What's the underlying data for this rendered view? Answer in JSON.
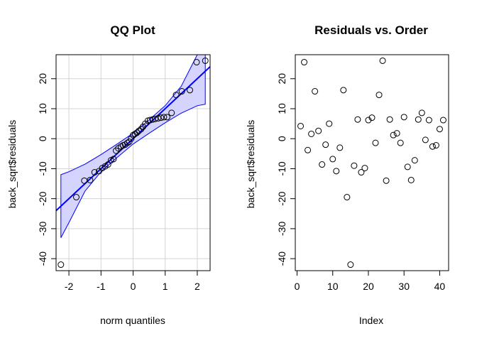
{
  "chart_data": [
    {
      "type": "scatter",
      "title": "QQ Plot",
      "xlabel": "norm quantiles",
      "ylabel": "back_sqrt$residuals",
      "xlim": [
        -2.4,
        2.4
      ],
      "ylim": [
        -44,
        28
      ],
      "xticks": [
        -2,
        -1,
        0,
        1,
        2
      ],
      "yticks": [
        -40,
        -30,
        -20,
        -10,
        0,
        10,
        20
      ],
      "grid": true,
      "point_color": "#000000",
      "line_color": "#0000ff",
      "band_fill": "#d4d4ff",
      "points": [
        {
          "x": -2.25,
          "y": -42
        },
        {
          "x": -1.77,
          "y": -19.5
        },
        {
          "x": -1.52,
          "y": -14
        },
        {
          "x": -1.34,
          "y": -13.8
        },
        {
          "x": -1.2,
          "y": -11.2
        },
        {
          "x": -1.06,
          "y": -10.8
        },
        {
          "x": -0.96,
          "y": -9.8
        },
        {
          "x": -0.87,
          "y": -9.2
        },
        {
          "x": -0.78,
          "y": -8.6
        },
        {
          "x": -0.69,
          "y": -7.2
        },
        {
          "x": -0.61,
          "y": -6.8
        },
        {
          "x": -0.53,
          "y": -4
        },
        {
          "x": -0.46,
          "y": -3.2
        },
        {
          "x": -0.38,
          "y": -2.6
        },
        {
          "x": -0.31,
          "y": -2.2
        },
        {
          "x": -0.25,
          "y": -2
        },
        {
          "x": -0.18,
          "y": -1.4
        },
        {
          "x": -0.12,
          "y": -1
        },
        {
          "x": -0.06,
          "y": 0
        },
        {
          "x": 0,
          "y": 1.2
        },
        {
          "x": 0.06,
          "y": 1.6
        },
        {
          "x": 0.12,
          "y": 2
        },
        {
          "x": 0.18,
          "y": 2.6
        },
        {
          "x": 0.25,
          "y": 3.2
        },
        {
          "x": 0.31,
          "y": 4
        },
        {
          "x": 0.38,
          "y": 5
        },
        {
          "x": 0.46,
          "y": 6
        },
        {
          "x": 0.53,
          "y": 6.2
        },
        {
          "x": 0.61,
          "y": 6.4
        },
        {
          "x": 0.69,
          "y": 6.6
        },
        {
          "x": 0.78,
          "y": 6.8
        },
        {
          "x": 0.87,
          "y": 7
        },
        {
          "x": 0.96,
          "y": 7.2
        },
        {
          "x": 1.06,
          "y": 7.2
        },
        {
          "x": 1.2,
          "y": 8.6
        },
        {
          "x": 1.34,
          "y": 14.6
        },
        {
          "x": 1.52,
          "y": 15.8
        },
        {
          "x": 1.77,
          "y": 16.2
        },
        {
          "x": 1.98,
          "y": 25.5
        },
        {
          "x": 2.25,
          "y": 26
        }
      ],
      "reference_line": {
        "intercept": 0,
        "slope": 10
      },
      "confidence_band": {
        "upper": [
          {
            "x": -2.25,
            "y": -12
          },
          {
            "x": -2,
            "y": -11
          },
          {
            "x": -1.5,
            "y": -8.5
          },
          {
            "x": -1,
            "y": -5.3
          },
          {
            "x": -0.5,
            "y": -1.8
          },
          {
            "x": 0,
            "y": 1.8
          },
          {
            "x": 0.5,
            "y": 6.3
          },
          {
            "x": 1,
            "y": 11
          },
          {
            "x": 1.5,
            "y": 17.5
          },
          {
            "x": 2,
            "y": 28
          },
          {
            "x": 2.25,
            "y": 33
          }
        ],
        "lower": [
          {
            "x": -2.25,
            "y": -33
          },
          {
            "x": -2,
            "y": -28
          },
          {
            "x": -1.5,
            "y": -17.5
          },
          {
            "x": -1,
            "y": -11
          },
          {
            "x": -0.5,
            "y": -6.3
          },
          {
            "x": 0,
            "y": -1.8
          },
          {
            "x": 0.5,
            "y": 1.8
          },
          {
            "x": 1,
            "y": 5.3
          },
          {
            "x": 1.5,
            "y": 8.5
          },
          {
            "x": 2,
            "y": 11
          },
          {
            "x": 2.25,
            "y": 11.5
          }
        ]
      }
    },
    {
      "type": "scatter",
      "title": "Residuals vs. Order",
      "xlabel": "Index",
      "ylabel": "back_sqrt$residuals",
      "xlim": [
        -0.5,
        42.5
      ],
      "ylim": [
        -44,
        28
      ],
      "xticks": [
        0,
        10,
        20,
        30,
        40
      ],
      "yticks": [
        -40,
        -30,
        -20,
        -10,
        0,
        10,
        20
      ],
      "grid": false,
      "point_color": "#000000",
      "points": [
        {
          "x": 1,
          "y": 4.2
        },
        {
          "x": 2,
          "y": 25.5
        },
        {
          "x": 3,
          "y": -3.8
        },
        {
          "x": 4,
          "y": 1.6
        },
        {
          "x": 5,
          "y": 15.8
        },
        {
          "x": 6,
          "y": 2.6
        },
        {
          "x": 7,
          "y": -8.6
        },
        {
          "x": 8,
          "y": -2
        },
        {
          "x": 9,
          "y": 5
        },
        {
          "x": 10,
          "y": -6.8
        },
        {
          "x": 11,
          "y": -10.8
        },
        {
          "x": 12,
          "y": -3
        },
        {
          "x": 13,
          "y": 16.2
        },
        {
          "x": 14,
          "y": -19.5
        },
        {
          "x": 15,
          "y": -42
        },
        {
          "x": 16,
          "y": -9
        },
        {
          "x": 17,
          "y": 6.4
        },
        {
          "x": 18,
          "y": -11.2
        },
        {
          "x": 19,
          "y": -9.8
        },
        {
          "x": 20,
          "y": 6.2
        },
        {
          "x": 21,
          "y": 7
        },
        {
          "x": 22,
          "y": -1.4
        },
        {
          "x": 23,
          "y": 14.6
        },
        {
          "x": 24,
          "y": 26
        },
        {
          "x": 25,
          "y": -14
        },
        {
          "x": 26,
          "y": 6.4
        },
        {
          "x": 27,
          "y": 1.2
        },
        {
          "x": 28,
          "y": 1.8
        },
        {
          "x": 29,
          "y": -1.4
        },
        {
          "x": 30,
          "y": 7.2
        },
        {
          "x": 31,
          "y": -9.4
        },
        {
          "x": 32,
          "y": -13.8
        },
        {
          "x": 33,
          "y": -7.2
        },
        {
          "x": 34,
          "y": 6.4
        },
        {
          "x": 35,
          "y": 8.6
        },
        {
          "x": 36,
          "y": -0.4
        },
        {
          "x": 37,
          "y": 6.2
        },
        {
          "x": 38,
          "y": -2.6
        },
        {
          "x": 39,
          "y": -2.2
        },
        {
          "x": 40,
          "y": 3.2
        },
        {
          "x": 41,
          "y": 6.2
        }
      ]
    }
  ]
}
